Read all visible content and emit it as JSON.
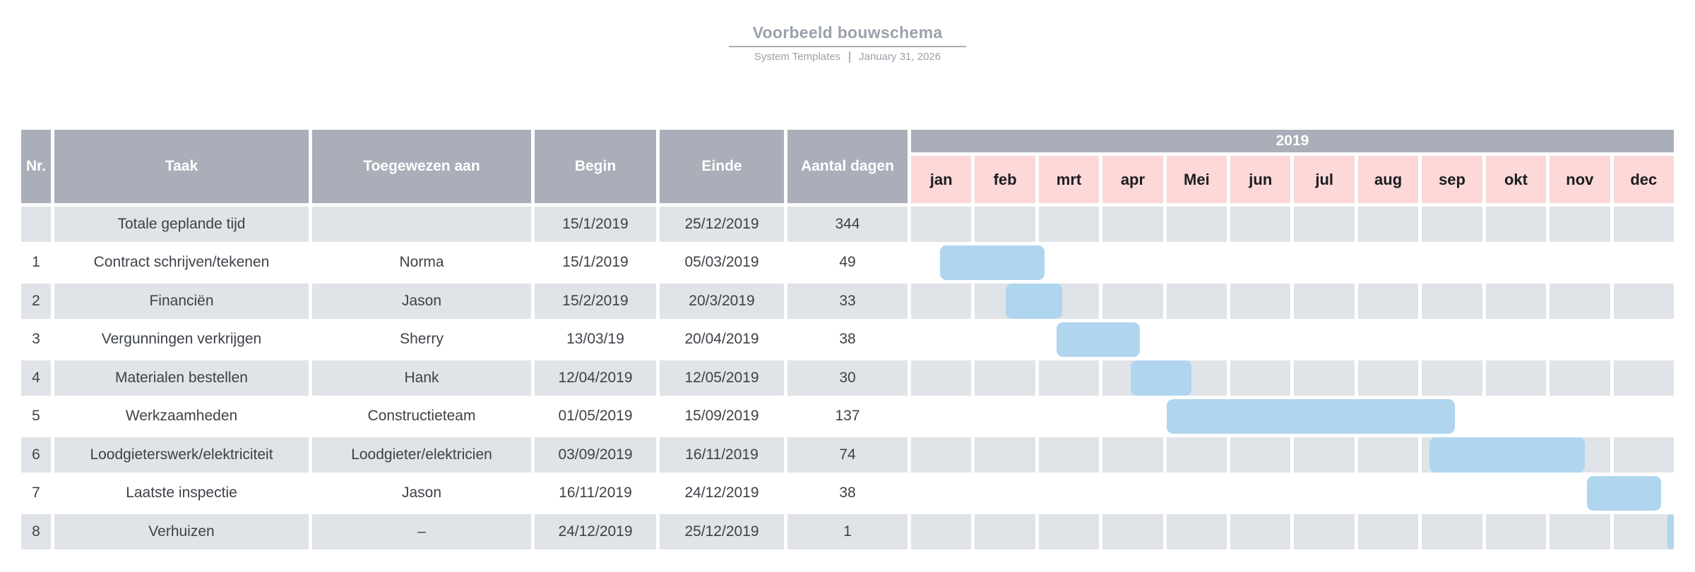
{
  "header": {
    "title": "Voorbeeld bouwschema",
    "author": "System Templates",
    "date": "January 31, 2026"
  },
  "colors": {
    "header_bg": "#a9aeb8",
    "month_bg": "#fcd8d8",
    "row_alt_bg": "#e0e3e7",
    "row_bg": "#ffffff",
    "bar": "#afd5ef",
    "text_dark": "#3d4248",
    "header_text": "#ffffff",
    "title_text": "#9aa1ab",
    "divider": "#a7aeb6"
  },
  "table": {
    "columns": [
      "Nr.",
      "Taak",
      "Toegewezen aan",
      "Begin",
      "Einde",
      "Aantal dagen"
    ],
    "year": "2019",
    "months": [
      "jan",
      "feb",
      "mrt",
      "apr",
      "Mei",
      "jun",
      "jul",
      "aug",
      "sep",
      "okt",
      "nov",
      "dec"
    ]
  },
  "chart_data": {
    "type": "gantt",
    "title": "Voorbeeld bouwschema",
    "timeline_year": "2019",
    "timeline_months": [
      "jan",
      "feb",
      "mrt",
      "apr",
      "Mei",
      "jun",
      "jul",
      "aug",
      "sep",
      "okt",
      "nov",
      "dec"
    ],
    "axis_range_months": [
      0,
      12
    ],
    "tasks": [
      {
        "nr": "",
        "taak": "Totale geplande tijd",
        "toegewezen": "",
        "begin": "15/1/2019",
        "einde": "25/12/2019",
        "dagen": "344",
        "bar": null
      },
      {
        "nr": "1",
        "taak": "Contract schrijven/tekenen",
        "toegewezen": "Norma",
        "begin": "15/1/2019",
        "einde": "05/03/2019",
        "dagen": "49",
        "bar": {
          "start_month": 0.45,
          "end_month": 2.12
        }
      },
      {
        "nr": "2",
        "taak": "Financiën",
        "toegewezen": "Jason",
        "begin": "15/2/2019",
        "einde": "20/3/2019",
        "dagen": "33",
        "bar": {
          "start_month": 1.48,
          "end_month": 2.4
        }
      },
      {
        "nr": "3",
        "taak": "Vergunningen verkrijgen",
        "toegewezen": "Sherry",
        "begin": "13/03/19",
        "einde": "20/04/2019",
        "dagen": "38",
        "bar": {
          "start_month": 2.28,
          "end_month": 3.62
        }
      },
      {
        "nr": "4",
        "taak": "Materialen bestellen",
        "toegewezen": "Hank",
        "begin": "12/04/2019",
        "einde": "12/05/2019",
        "dagen": "30",
        "bar": {
          "start_month": 3.44,
          "end_month": 4.42
        }
      },
      {
        "nr": "5",
        "taak": "Werkzaamheden",
        "toegewezen": "Constructieteam",
        "begin": "01/05/2019",
        "einde": "15/09/2019",
        "dagen": "137",
        "bar": {
          "start_month": 4.0,
          "end_month": 8.55
        }
      },
      {
        "nr": "6",
        "taak": "Loodgieterswerk/elektriciteit",
        "toegewezen": "Loodgieter/elektricien",
        "begin": "03/09/2019",
        "einde": "16/11/2019",
        "dagen": "74",
        "bar": {
          "start_month": 8.12,
          "end_month": 10.58
        }
      },
      {
        "nr": "7",
        "taak": "Laatste inspectie",
        "toegewezen": "Jason",
        "begin": "16/11/2019",
        "einde": "24/12/2019",
        "dagen": "38",
        "bar": {
          "start_month": 10.58,
          "end_month": 11.78
        }
      },
      {
        "nr": "8",
        "taak": "Verhuizen",
        "toegewezen": "–",
        "begin": "24/12/2019",
        "einde": "25/12/2019",
        "dagen": "1",
        "bar": {
          "start_month": 11.84,
          "end_month": 12.0
        }
      }
    ]
  }
}
